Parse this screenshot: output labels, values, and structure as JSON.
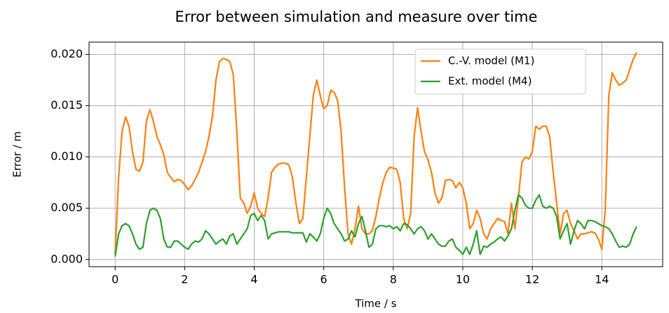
{
  "chart_data": {
    "type": "line",
    "title": "Error between simulation and measure over time",
    "xlabel": "Time / s",
    "ylabel": "Error / m",
    "x": [
      0,
      0.1,
      0.2,
      0.3,
      0.4,
      0.5,
      0.6,
      0.7,
      0.8,
      0.9,
      1,
      1.1,
      1.2,
      1.3,
      1.4,
      1.5,
      1.6,
      1.7,
      1.8,
      1.9,
      2,
      2.1,
      2.2,
      2.3,
      2.4,
      2.5,
      2.6,
      2.7,
      2.8,
      2.9,
      3,
      3.1,
      3.2,
      3.3,
      3.4,
      3.5,
      3.6,
      3.7,
      3.8,
      3.9,
      4,
      4.1,
      4.2,
      4.3,
      4.4,
      4.5,
      4.6,
      4.7,
      4.8,
      4.9,
      5,
      5.1,
      5.2,
      5.3,
      5.4,
      5.5,
      5.6,
      5.7,
      5.8,
      5.9,
      6,
      6.1,
      6.2,
      6.3,
      6.4,
      6.5,
      6.6,
      6.7,
      6.8,
      6.9,
      7,
      7.1,
      7.2,
      7.3,
      7.4,
      7.5,
      7.6,
      7.7,
      7.8,
      7.9,
      8,
      8.1,
      8.2,
      8.3,
      8.4,
      8.5,
      8.6,
      8.7,
      8.8,
      8.9,
      9,
      9.1,
      9.2,
      9.3,
      9.4,
      9.5,
      9.6,
      9.7,
      9.8,
      9.9,
      10,
      10.1,
      10.2,
      10.3,
      10.4,
      10.5,
      10.6,
      10.7,
      10.8,
      10.9,
      11,
      11.1,
      11.2,
      11.3,
      11.4,
      11.5,
      11.6,
      11.7,
      11.8,
      11.9,
      12,
      12.1,
      12.2,
      12.3,
      12.4,
      12.5,
      12.6,
      12.7,
      12.8,
      12.9,
      13,
      13.1,
      13.2,
      13.3,
      13.4,
      13.5,
      13.6,
      13.7,
      13.8,
      13.9,
      14,
      14.1,
      14.2,
      14.3,
      14.4,
      14.5,
      14.6,
      14.7,
      14.8,
      14.9,
      15
    ],
    "series": [
      {
        "name": "C.-V. model (M1)",
        "color": "#ff7f0e",
        "values": [
          0.0005,
          0.008,
          0.0125,
          0.0139,
          0.013,
          0.0105,
          0.0088,
          0.0086,
          0.0095,
          0.0135,
          0.0146,
          0.0135,
          0.012,
          0.0112,
          0.0102,
          0.0085,
          0.008,
          0.0076,
          0.0078,
          0.0077,
          0.0073,
          0.0068,
          0.0072,
          0.0078,
          0.0085,
          0.0095,
          0.0105,
          0.012,
          0.014,
          0.0175,
          0.0193,
          0.0196,
          0.0195,
          0.0193,
          0.018,
          0.0125,
          0.006,
          0.0055,
          0.0045,
          0.0052,
          0.0065,
          0.005,
          0.0045,
          0.0042,
          0.006,
          0.0085,
          0.009,
          0.0093,
          0.0094,
          0.0094,
          0.0092,
          0.008,
          0.0055,
          0.0035,
          0.004,
          0.008,
          0.012,
          0.016,
          0.0175,
          0.016,
          0.0147,
          0.015,
          0.0165,
          0.0163,
          0.0155,
          0.0125,
          0.007,
          0.0025,
          0.0015,
          0.003,
          0.0052,
          0.003,
          0.0025,
          0.0025,
          0.0028,
          0.0042,
          0.006,
          0.0075,
          0.0085,
          0.009,
          0.0089,
          0.0088,
          0.0075,
          0.004,
          0.003,
          0.0045,
          0.012,
          0.0148,
          0.0125,
          0.0105,
          0.0097,
          0.0085,
          0.0065,
          0.0055,
          0.006,
          0.0077,
          0.0078,
          0.0077,
          0.007,
          0.0075,
          0.007,
          0.0055,
          0.003,
          0.0035,
          0.0048,
          0.004,
          0.0025,
          0.002,
          0.003,
          0.0035,
          0.004,
          0.0038,
          0.0037,
          0.0025,
          0.0055,
          0.003,
          0.006,
          0.0095,
          0.01,
          0.0098,
          0.0105,
          0.013,
          0.0127,
          0.013,
          0.013,
          0.012,
          0.0085,
          0.0055,
          0.0025,
          0.0045,
          0.0048,
          0.0035,
          0.0028,
          0.002,
          0.0025,
          0.0025,
          0.0026,
          0.0027,
          0.0026,
          0.002,
          0.001,
          0.005,
          0.016,
          0.0182,
          0.0175,
          0.017,
          0.0172,
          0.0175,
          0.0185,
          0.0195,
          0.0202
        ]
      },
      {
        "name": "Ext. model (M4)",
        "color": "#2ca02c",
        "values": [
          0.0003,
          0.0025,
          0.0033,
          0.0035,
          0.0033,
          0.0025,
          0.0015,
          0.001,
          0.0012,
          0.0035,
          0.0048,
          0.005,
          0.0048,
          0.004,
          0.002,
          0.0012,
          0.0012,
          0.0018,
          0.0018,
          0.0015,
          0.0012,
          0.001,
          0.0015,
          0.0018,
          0.0017,
          0.002,
          0.0028,
          0.0025,
          0.002,
          0.0015,
          0.0018,
          0.002,
          0.0015,
          0.0023,
          0.0025,
          0.0015,
          0.002,
          0.0025,
          0.003,
          0.0043,
          0.0045,
          0.0038,
          0.0043,
          0.0038,
          0.002,
          0.0025,
          0.0026,
          0.0027,
          0.0027,
          0.0027,
          0.0027,
          0.0026,
          0.0026,
          0.0026,
          0.0026,
          0.0017,
          0.0025,
          0.0022,
          0.0018,
          0.0025,
          0.004,
          0.005,
          0.0045,
          0.0035,
          0.003,
          0.0025,
          0.0018,
          0.002,
          0.0028,
          0.0022,
          0.0035,
          0.0042,
          0.0028,
          0.0012,
          0.0015,
          0.003,
          0.0033,
          0.0033,
          0.0032,
          0.0033,
          0.003,
          0.0032,
          0.0028,
          0.0035,
          0.0034,
          0.003,
          0.0025,
          0.003,
          0.0032,
          0.0028,
          0.002,
          0.0025,
          0.002,
          0.0015,
          0.0013,
          0.0013,
          0.0018,
          0.002,
          0.0012,
          0.0009,
          0.0005,
          0.0012,
          0.0005,
          0.0015,
          0.0028,
          0.0005,
          0.0013,
          0.0012,
          0.0015,
          0.0017,
          0.002,
          0.0022,
          0.0018,
          0.0023,
          0.003,
          0.0048,
          0.0063,
          0.006,
          0.0053,
          0.005,
          0.005,
          0.0058,
          0.0063,
          0.0052,
          0.005,
          0.0052,
          0.005,
          0.0042,
          0.002,
          0.0028,
          0.0035,
          0.0015,
          0.0028,
          0.0038,
          0.0035,
          0.003,
          0.0038,
          0.0038,
          0.0037,
          0.0035,
          0.0033,
          0.0032,
          0.003,
          0.0025,
          0.0018,
          0.0012,
          0.0013,
          0.0012,
          0.0015,
          0.0025,
          0.0032
        ]
      }
    ],
    "xlim": [
      -0.75,
      15.75
    ],
    "xticks": [
      0,
      2,
      4,
      6,
      8,
      10,
      12,
      14
    ],
    "ylim": [
      -0.0007,
      0.0212
    ],
    "yticks": [
      {
        "value": 0,
        "label": "0.000"
      },
      {
        "value": 0.005,
        "label": "0.005"
      },
      {
        "value": 0.01,
        "label": "0.010"
      },
      {
        "value": 0.015,
        "label": "0.015"
      },
      {
        "value": 0.02,
        "label": "0.020"
      }
    ],
    "grid": true,
    "legend": "upper right"
  }
}
